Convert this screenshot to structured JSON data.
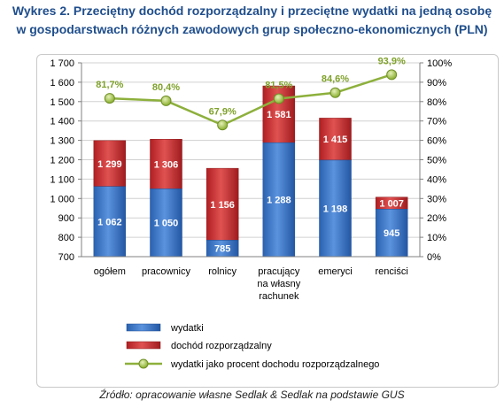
{
  "title": {
    "line1": "Wykres 2. Przeciętny dochód rozporządzalny i przeciętne wydatki na jedną osobę",
    "line2": "w gospodarstwach różnych zawodowych grup społeczno-ekonomicznych (PLN)"
  },
  "source": "Źródło: opracowanie własne Sedlak & Sedlak na podstawie GUS",
  "colors": {
    "wydatki": "#2e6ec2",
    "dochod": "#c0282c",
    "procent_line": "#8db03c",
    "procent_marker": "#a9c84f",
    "procent_label": "#7fa12a",
    "grid": "#d0d0d0"
  },
  "chart_data": {
    "type": "bar",
    "categories": [
      "ogółem",
      "pracownicy",
      "rolnicy",
      "pracujący na własny rachunek",
      "emeryci",
      "renciści"
    ],
    "category_lines": [
      [
        "ogółem"
      ],
      [
        "pracownicy"
      ],
      [
        "rolnicy"
      ],
      [
        "pracujący",
        "na własny",
        "rachunek"
      ],
      [
        "emeryci"
      ],
      [
        "renciści"
      ]
    ],
    "series": [
      {
        "name": "wydatki",
        "type": "bar",
        "axis": "left",
        "values": [
          1062,
          1050,
          785,
          1288,
          1198,
          945
        ],
        "labels": [
          "1 062",
          "1 050",
          "785",
          "1 288",
          "1 198",
          "945"
        ]
      },
      {
        "name": "dochód rozporządzalny",
        "type": "bar",
        "axis": "left",
        "values": [
          1299,
          1306,
          1156,
          1581,
          1415,
          1007
        ],
        "labels": [
          "1 299",
          "1 306",
          "1 156",
          "1 581",
          "1 415",
          "1 007"
        ]
      },
      {
        "name": "wydatki jako procent dochodu rozporządzalnego",
        "type": "line",
        "axis": "right",
        "values": [
          81.7,
          80.4,
          67.9,
          81.5,
          84.6,
          93.9
        ],
        "labels": [
          "81,7%",
          "80,4%",
          "67,9%",
          "81,5%",
          "84,6%",
          "93,9%"
        ]
      }
    ],
    "ylim": [
      700,
      1700
    ],
    "y_ticks": [
      700,
      800,
      900,
      1000,
      1100,
      1200,
      1300,
      1400,
      1500,
      1600,
      1700
    ],
    "y_tick_labels": [
      "700",
      "800",
      "900",
      "1 000",
      "1 100",
      "1 200",
      "1 300",
      "1 400",
      "1 500",
      "1 600",
      "1 700"
    ],
    "y2lim": [
      0,
      100
    ],
    "y2_ticks": [
      0,
      10,
      20,
      30,
      40,
      50,
      60,
      70,
      80,
      90,
      100
    ],
    "y2_tick_labels": [
      "0%",
      "10%",
      "20%",
      "30%",
      "40%",
      "50%",
      "60%",
      "70%",
      "80%",
      "90%",
      "100%"
    ],
    "grid": true,
    "legend": {
      "position": "bottom-left",
      "entries": [
        "wydatki",
        "dochód rozporządzalny",
        "wydatki jako procent dochodu rozporządzalnego"
      ]
    }
  }
}
